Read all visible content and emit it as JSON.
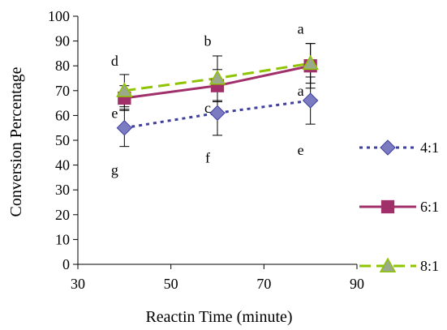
{
  "chart_data": {
    "type": "line",
    "xlabel": "Reactin Time (minute)",
    "ylabel": "Conversion Percentage",
    "xlim": [
      30,
      90
    ],
    "ylim": [
      0,
      100
    ],
    "xticks": [
      30,
      50,
      70,
      90
    ],
    "yticks": [
      0,
      10,
      20,
      30,
      40,
      50,
      60,
      70,
      80,
      90,
      100
    ],
    "grid": false,
    "legend_position": "right",
    "x": [
      40,
      60,
      80
    ],
    "series": [
      {
        "name": "4:1",
        "values": [
          55,
          61,
          66
        ],
        "error": [
          7.5,
          9,
          9.5
        ],
        "color": "#3f3fa0",
        "marker_color": "#7b7bc2",
        "marker": "diamond",
        "dash": "dotted"
      },
      {
        "name": "6:1",
        "values": [
          67,
          72,
          80
        ],
        "error": [
          5,
          6.5,
          9
        ],
        "color": "#a1306a",
        "marker_color": "#a1306a",
        "marker": "square",
        "dash": "solid"
      },
      {
        "name": "8:1",
        "values": [
          70,
          75,
          81
        ],
        "error": [
          6.5,
          9,
          8
        ],
        "color": "#8fc400",
        "marker_color": "#9aaa8a",
        "marker": "triangle",
        "dash": "dashed"
      }
    ],
    "annotations": [
      {
        "text": "d",
        "x": 40,
        "y": 82
      },
      {
        "text": "e",
        "x": 40,
        "y": 61
      },
      {
        "text": "g",
        "x": 40,
        "y": 38
      },
      {
        "text": "b",
        "x": 60,
        "y": 90
      },
      {
        "text": "c",
        "x": 60,
        "y": 63
      },
      {
        "text": "f",
        "x": 60,
        "y": 43
      },
      {
        "text": "a",
        "x": 80,
        "y": 95
      },
      {
        "text": "a",
        "x": 80,
        "y": 70
      },
      {
        "text": "e",
        "x": 80,
        "y": 46
      }
    ]
  }
}
